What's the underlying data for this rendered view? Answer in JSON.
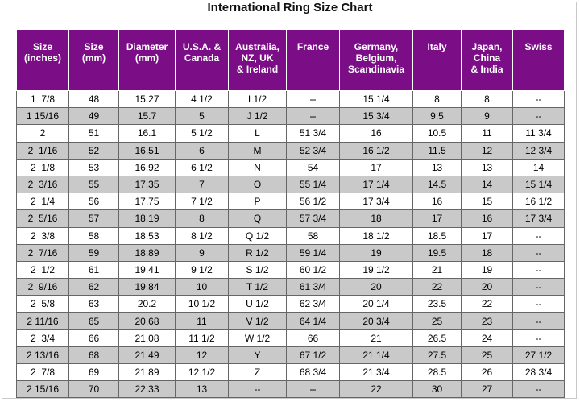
{
  "title": "International Ring Size Chart",
  "colors": {
    "header_bg": "#7b0d86",
    "header_text": "#ffffff",
    "stripe": "#c9c9c9"
  },
  "headers": [
    [
      "Size",
      "(inches)"
    ],
    [
      "Size",
      "(mm)"
    ],
    [
      "Diameter",
      "(mm)"
    ],
    [
      "U.S.A. &",
      "Canada"
    ],
    [
      "Australia,",
      "NZ, UK",
      "& Ireland"
    ],
    [
      "France"
    ],
    [
      "Germany,",
      "Belgium,",
      "Scandinavia"
    ],
    [
      "Italy"
    ],
    [
      "Japan,",
      "China",
      "& India"
    ],
    [
      "Swiss"
    ]
  ],
  "rows": [
    [
      "1  7/8",
      "48",
      "15.27",
      "4 1/2",
      "I 1/2",
      "--",
      "15 1/4",
      "8",
      "8",
      "--"
    ],
    [
      "1 15/16",
      "49",
      "15.7",
      "5",
      "J 1/2",
      "--",
      "15 3/4",
      "9.5",
      "9",
      "--"
    ],
    [
      "2",
      "51",
      "16.1",
      "5 1/2",
      "L",
      "51 3/4",
      "16",
      "10.5",
      "11",
      "11 3/4"
    ],
    [
      "2  1/16",
      "52",
      "16.51",
      "6",
      "M",
      "52 3/4",
      "16 1/2",
      "11.5",
      "12",
      "12 3/4"
    ],
    [
      "2  1/8",
      "53",
      "16.92",
      "6 1/2",
      "N",
      "54",
      "17",
      "13",
      "13",
      "14"
    ],
    [
      "2  3/16",
      "55",
      "17.35",
      "7",
      "O",
      "55 1/4",
      "17 1/4",
      "14.5",
      "14",
      "15 1/4"
    ],
    [
      "2  1/4",
      "56",
      "17.75",
      "7 1/2",
      "P",
      "56 1/2",
      "17 3/4",
      "16",
      "15",
      "16 1/2"
    ],
    [
      "2  5/16",
      "57",
      "18.19",
      "8",
      "Q",
      "57 3/4",
      "18",
      "17",
      "16",
      "17 3/4"
    ],
    [
      "2  3/8",
      "58",
      "18.53",
      "8 1/2",
      "Q 1/2",
      "58",
      "18 1/2",
      "18.5",
      "17",
      "--"
    ],
    [
      "2  7/16",
      "59",
      "18.89",
      "9",
      "R 1/2",
      "59 1/4",
      "19",
      "19.5",
      "18",
      "--"
    ],
    [
      "2  1/2",
      "61",
      "19.41",
      "9 1/2",
      "S 1/2",
      "60 1/2",
      "19 1/2",
      "21",
      "19",
      "--"
    ],
    [
      "2  9/16",
      "62",
      "19.84",
      "10",
      "T 1/2",
      "61 3/4",
      "20",
      "22",
      "20",
      "--"
    ],
    [
      "2  5/8",
      "63",
      "20.2",
      "10 1/2",
      "U 1/2",
      "62 3/4",
      "20 1/4",
      "23.5",
      "22",
      "--"
    ],
    [
      "2 11/16",
      "65",
      "20.68",
      "11",
      "V 1/2",
      "64 1/4",
      "20 3/4",
      "25",
      "23",
      "--"
    ],
    [
      "2  3/4",
      "66",
      "21.08",
      "11 1/2",
      "W 1/2",
      "66",
      "21",
      "26.5",
      "24",
      "--"
    ],
    [
      "2 13/16",
      "68",
      "21.49",
      "12",
      "Y",
      "67 1/2",
      "21 1/4",
      "27.5",
      "25",
      "27 1/2"
    ],
    [
      "2  7/8",
      "69",
      "21.89",
      "12 1/2",
      "Z",
      "68 3/4",
      "21 3/4",
      "28.5",
      "26",
      "28 3/4"
    ],
    [
      "2 15/16",
      "70",
      "22.33",
      "13",
      "--",
      "--",
      "22",
      "30",
      "27",
      "--"
    ]
  ]
}
